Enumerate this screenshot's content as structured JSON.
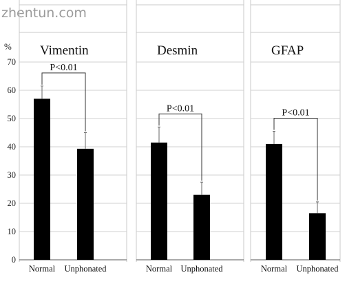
{
  "watermark": "zhentun.com",
  "y_unit": "%",
  "chart_data": [
    {
      "type": "bar",
      "title": "Vimentin",
      "categories": [
        "Normal",
        "Unphonated"
      ],
      "values": [
        57,
        39.3
      ],
      "error_upper": [
        61.5,
        45
      ],
      "significance": "P<0.01",
      "ylim": [
        0,
        70
      ],
      "yticks": [
        0,
        10,
        20,
        30,
        40,
        50,
        60,
        70
      ],
      "grid": true,
      "bar_color": "#000000"
    },
    {
      "type": "bar",
      "title": "Desmin",
      "categories": [
        "Normal",
        "Unphonated"
      ],
      "values": [
        41.5,
        23
      ],
      "error_upper": [
        47,
        27.5
      ],
      "significance": "P<0.01",
      "ylim": [
        0,
        70
      ],
      "yticks": [
        0,
        10,
        20,
        30,
        40,
        50,
        60,
        70
      ],
      "grid": true,
      "bar_color": "#000000"
    },
    {
      "type": "bar",
      "title": "GFAP",
      "categories": [
        "Normal",
        "Unphonated"
      ],
      "values": [
        41,
        16.5
      ],
      "error_upper": [
        45.5,
        20.5
      ],
      "significance": "P<0.01",
      "ylim": [
        0,
        70
      ],
      "yticks": [
        0,
        10,
        20,
        30,
        40,
        50,
        60,
        70
      ],
      "grid": true,
      "bar_color": "#000000"
    }
  ]
}
